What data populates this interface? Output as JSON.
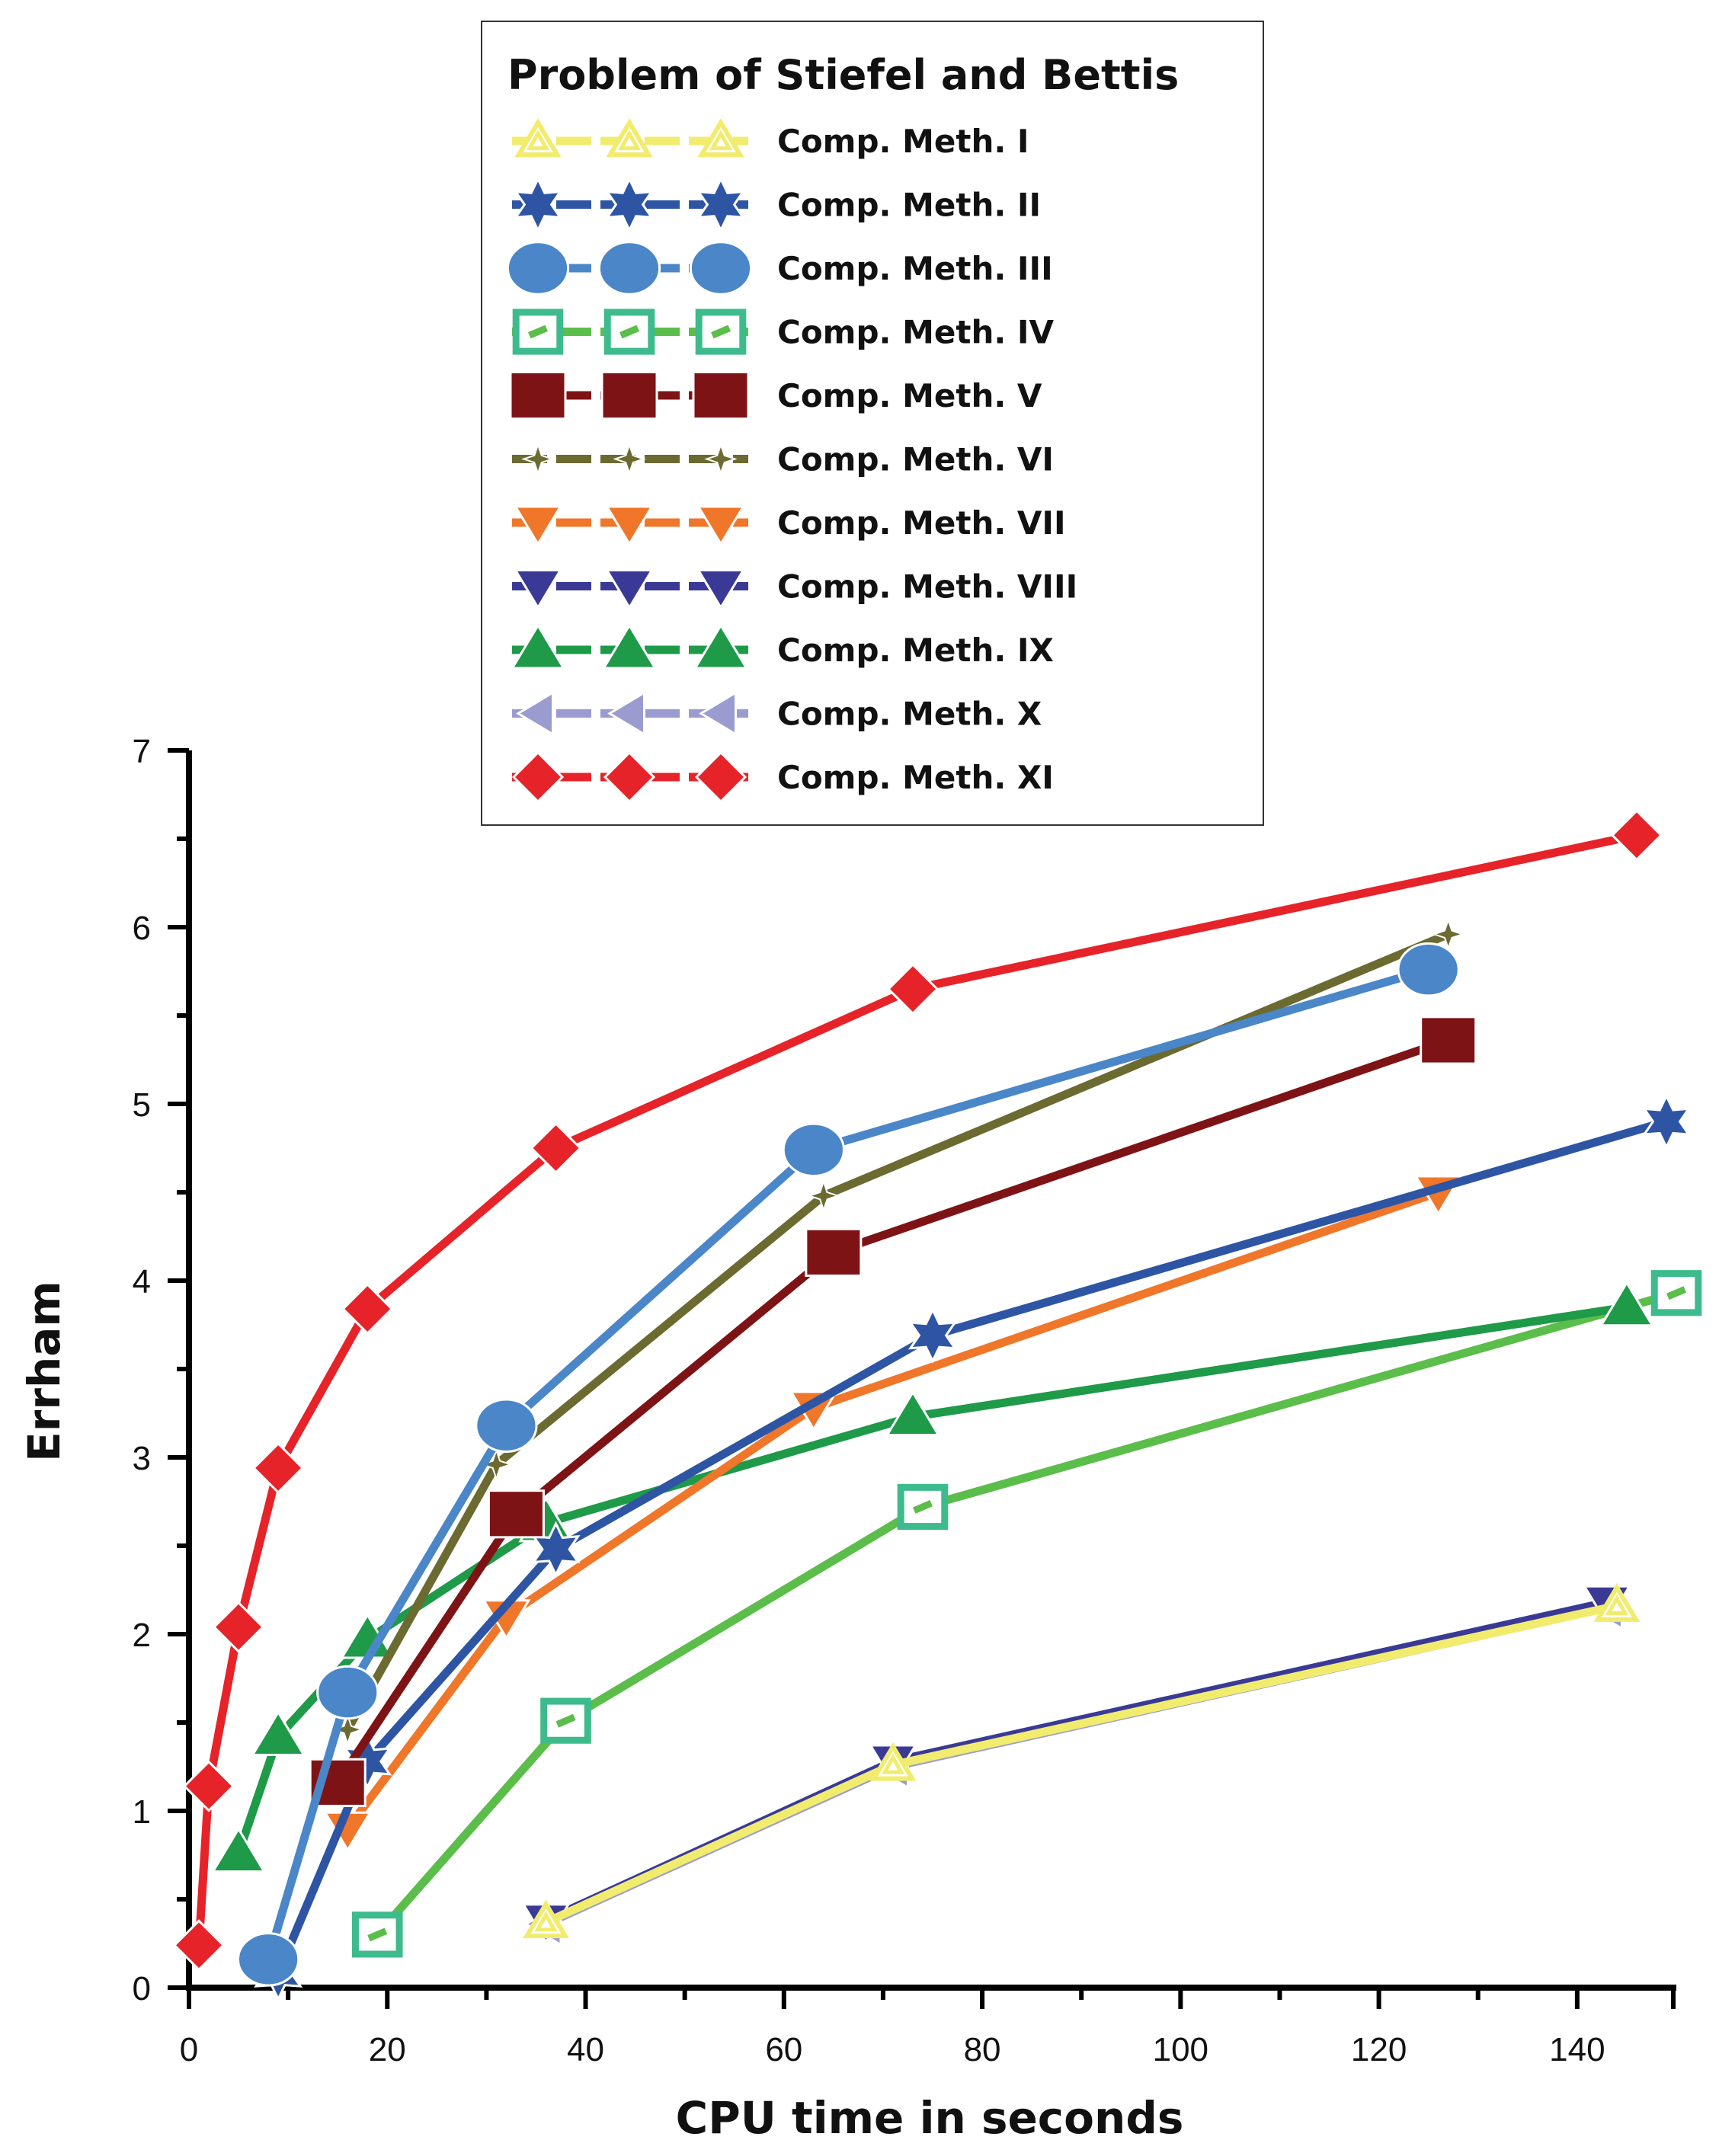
{
  "chart_data": {
    "type": "line",
    "title": "Problem of Stiefel and Bettis",
    "xlabel": "CPU time in seconds",
    "ylabel": "Errham",
    "xlim": [
      0,
      150
    ],
    "ylim": [
      0,
      7
    ],
    "xticks": [
      0,
      20,
      40,
      60,
      80,
      100,
      120,
      140
    ],
    "yticks": [
      0,
      1,
      2,
      3,
      4,
      5,
      6,
      7
    ],
    "legend_position": "top-center",
    "series": [
      {
        "name": "Comp. Meth. I",
        "color": "#F2EC6E",
        "marker": "triangle-up-open",
        "x": [
          36,
          71,
          144
        ],
        "y": [
          0.37,
          1.26,
          2.16
        ]
      },
      {
        "name": "Comp. Meth. II",
        "color": "#2E55A4",
        "marker": "star6",
        "x": [
          9,
          18,
          37,
          75,
          149
        ],
        "y": [
          0.08,
          1.28,
          2.48,
          3.69,
          4.9
        ]
      },
      {
        "name": "Comp. Meth. III",
        "color": "#4A86C8",
        "marker": "circle",
        "x": [
          8,
          16,
          32,
          63,
          125
        ],
        "y": [
          0.16,
          1.67,
          3.18,
          4.74,
          5.76
        ]
      },
      {
        "name": "Comp. Meth. IV",
        "color": "#5BBD4A",
        "marker": "square-open",
        "x": [
          19,
          38,
          74,
          150
        ],
        "y": [
          0.3,
          1.51,
          2.72,
          3.93
        ]
      },
      {
        "name": "Comp. Meth. V",
        "color": "#7E1315",
        "marker": "square",
        "x": [
          15,
          33,
          65,
          127
        ],
        "y": [
          1.16,
          2.68,
          4.16,
          5.36
        ]
      },
      {
        "name": "Comp. Meth. VI",
        "color": "#6B6A30",
        "marker": "star4",
        "x": [
          16,
          31,
          64,
          127
        ],
        "y": [
          1.46,
          2.96,
          4.48,
          5.96
        ]
      },
      {
        "name": "Comp. Meth. VII",
        "color": "#F0762A",
        "marker": "triangle-down",
        "x": [
          16,
          32,
          63,
          126
        ],
        "y": [
          0.9,
          2.1,
          3.28,
          4.5
        ]
      },
      {
        "name": "Comp. Meth. VIII",
        "color": "#3A3A96",
        "marker": "triangle-down",
        "x": [
          36,
          71,
          143
        ],
        "y": [
          0.38,
          1.28,
          2.18
        ]
      },
      {
        "name": "Comp. Meth. IX",
        "color": "#1E9A48",
        "marker": "triangle-up",
        "x": [
          5,
          9,
          18,
          36,
          73,
          145
        ],
        "y": [
          0.76,
          1.42,
          1.97,
          2.63,
          3.23,
          3.85
        ]
      },
      {
        "name": "Comp. Meth. X",
        "color": "#9A9CD0",
        "marker": "triangle-left",
        "x": [
          36,
          71,
          143
        ],
        "y": [
          0.36,
          1.25,
          2.15
        ]
      },
      {
        "name": "Comp. Meth. XI",
        "color": "#E62329",
        "marker": "diamond",
        "x": [
          1,
          2,
          5,
          9,
          18,
          37,
          73,
          146
        ],
        "y": [
          0.24,
          1.14,
          2.04,
          2.94,
          3.84,
          4.75,
          5.65,
          6.52
        ]
      }
    ]
  }
}
